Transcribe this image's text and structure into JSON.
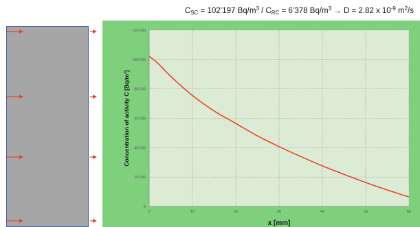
{
  "header": {
    "csc_label": "C",
    "csc_sub": "SC",
    "csc_value": " = 102’197 Bq/m",
    "unit_exp_1": "3",
    "sep": " / C",
    "crc_sub": "RC",
    "crc_value": " = 6’378 Bq/m",
    "unit_exp_2": "3",
    "arrow": " → D = 2.82 x 10",
    "d_exp": "-9",
    "d_unit": " m",
    "d_unit_exp": "2",
    "d_unit_tail": "/s"
  },
  "colors": {
    "curve": "#e8452b",
    "arrows": "#e8452b",
    "plot_background": "#dcebd3",
    "panel_background": "#7fd07d",
    "slab": "#a6a6a6",
    "grid": "#9a9a9a"
  },
  "chart_data": {
    "type": "line",
    "title": "",
    "xlabel": "x [mm]",
    "ylabel": "Concentration of activity C [Bq/m³]",
    "xlim": [
      0,
      60
    ],
    "ylim": [
      0,
      120000
    ],
    "x_ticks": [
      0,
      10,
      20,
      30,
      40,
      50,
      60
    ],
    "y_ticks": [
      0,
      20000,
      40000,
      60000,
      80000,
      100000,
      120000
    ],
    "x_tick_labels": [
      "0",
      "10",
      "20",
      "30",
      "40",
      "50",
      "60"
    ],
    "y_tick_labels": [
      "0",
      "20’000",
      "40’000",
      "60’000",
      "80’000",
      "100’000",
      "120’000"
    ],
    "grid": true,
    "series": [
      {
        "x": [
          0,
          2,
          5,
          10,
          15,
          20,
          25,
          30,
          35,
          40,
          45,
          50,
          55,
          60
        ],
        "values": [
          102197,
          97500,
          88500,
          75500,
          65000,
          56500,
          48000,
          40700,
          34000,
          27600,
          21800,
          16300,
          11200,
          6378
        ]
      }
    ]
  }
}
